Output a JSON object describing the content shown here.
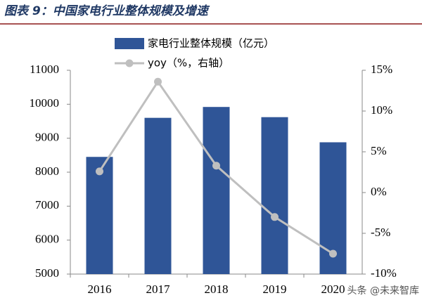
{
  "chart_data": {
    "type": "bar-line",
    "title": "图表 9：中国家电行业整体规模及增速",
    "categories": [
      "2016",
      "2017",
      "2018",
      "2019",
      "2020"
    ],
    "series": [
      {
        "name": "家电行业整体规模（亿元）",
        "type": "bar",
        "color": "#2f5597",
        "values": [
          8450,
          9600,
          9920,
          9620,
          8880
        ]
      },
      {
        "name": "yoy（%，右轴）",
        "type": "line",
        "axis": "y2",
        "color": "#bfbfbf",
        "values": [
          2.6,
          13.6,
          3.3,
          -3.0,
          -7.5
        ]
      }
    ],
    "ylim": [
      5000,
      11000
    ],
    "yticks": [
      5000,
      6000,
      7000,
      8000,
      9000,
      10000,
      11000
    ],
    "y2lim": [
      -10,
      15
    ],
    "y2ticks": [
      {
        "value": -10,
        "label": "-10%"
      },
      {
        "value": -5,
        "label": "-5%"
      },
      {
        "value": 0,
        "label": "0%"
      },
      {
        "value": 5,
        "label": "5%"
      },
      {
        "value": 10,
        "label": "10%"
      },
      {
        "value": 15,
        "label": "15%"
      }
    ],
    "grid": false,
    "watermark": "头条 @未来智库"
  }
}
